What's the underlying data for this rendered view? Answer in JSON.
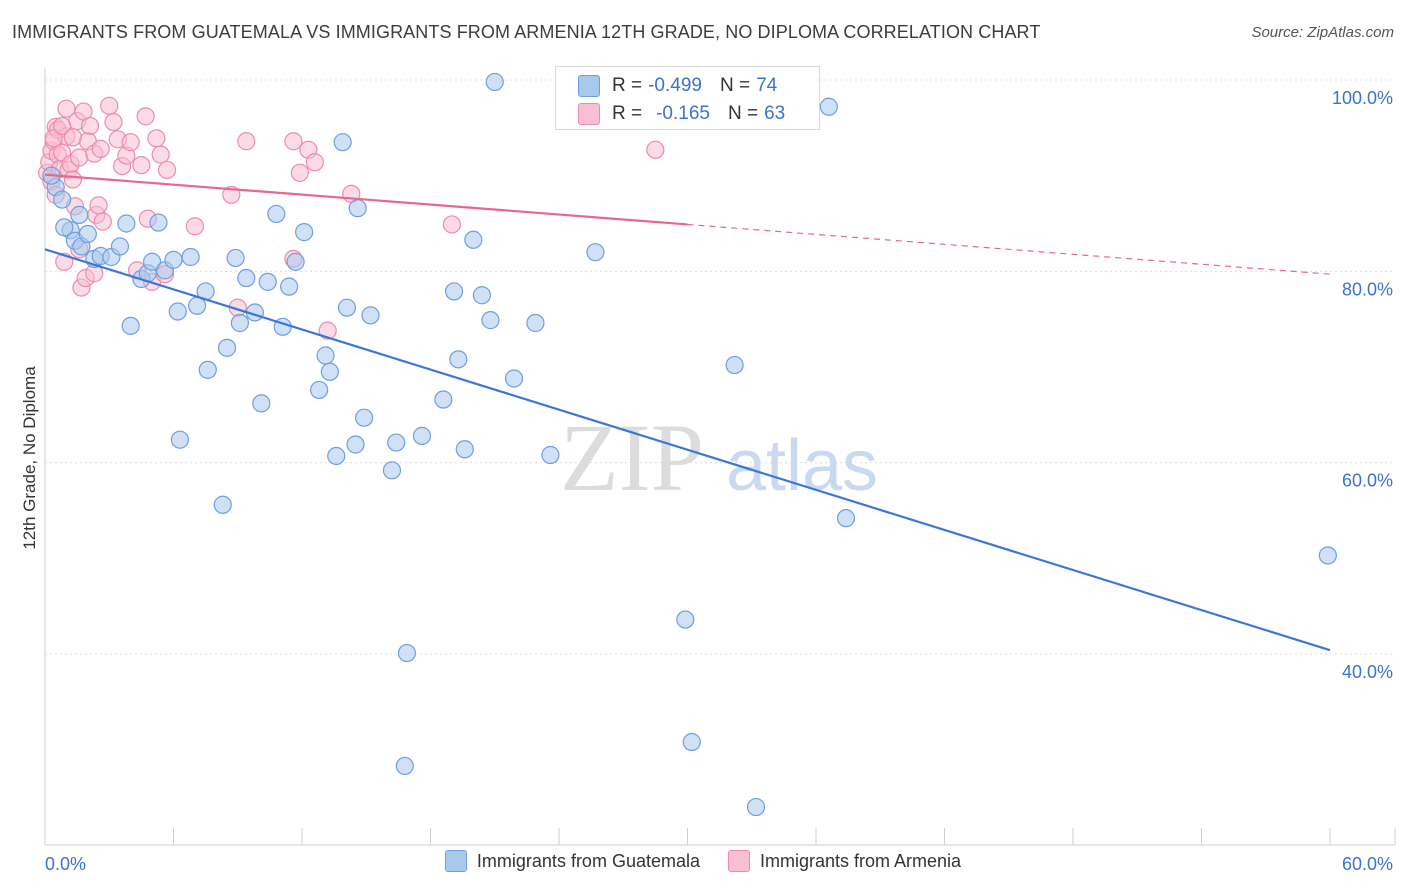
{
  "title": "IMMIGRANTS FROM GUATEMALA VS IMMIGRANTS FROM ARMENIA 12TH GRADE, NO DIPLOMA CORRELATION CHART",
  "source": "Source: ZipAtlas.com",
  "watermark": {
    "zip": "ZIP",
    "atlas": "atlas"
  },
  "stats": [
    {
      "r_label": "R =",
      "r_value": "-0.499",
      "n_label": "N =",
      "n_value": "74",
      "color": "#aac8ee",
      "border": "#6f9ee0"
    },
    {
      "r_label": "R =",
      "r_value": "-0.165",
      "n_label": "N =",
      "n_value": "63",
      "color": "#f8c0d2",
      "border": "#ef8bab"
    }
  ],
  "legend": [
    {
      "label": "Immigrants from Guatemala",
      "color": "#aac8ee",
      "border": "#6f9ee0"
    },
    {
      "label": "Immigrants from Armenia",
      "color": "#f8c0d2",
      "border": "#ef8bab"
    }
  ],
  "chart_data": {
    "type": "scatter",
    "ylabel": "12th Grade, No Diploma",
    "xlim": [
      0,
      60
    ],
    "ylim": [
      20,
      102
    ],
    "x_tick_labels": [
      {
        "value": 0,
        "label": "0.0%"
      },
      {
        "value": 60,
        "label": "60.0%"
      }
    ],
    "y_tick_labels": [
      {
        "value": 100,
        "label": "100.0%"
      },
      {
        "value": 80,
        "label": "80.0%"
      },
      {
        "value": 60,
        "label": "60.0%"
      },
      {
        "value": 40,
        "label": "40.0%"
      }
    ],
    "grid": true,
    "series": [
      {
        "name": "Immigrants from Guatemala",
        "color": "#aac8ee",
        "stroke": "#6f9ee0",
        "trend_color": "#3a78d6",
        "trend": {
          "x": [
            0,
            60
          ],
          "y": [
            82.3,
            40.4
          ]
        },
        "points": [
          {
            "x": 0.5,
            "y": 88.8
          },
          {
            "x": 0.8,
            "y": 87.5
          },
          {
            "x": 1.2,
            "y": 84.3
          },
          {
            "x": 1.4,
            "y": 83.2
          },
          {
            "x": 1.7,
            "y": 82.6
          },
          {
            "x": 2.0,
            "y": 83.9
          },
          {
            "x": 2.3,
            "y": 81.3
          },
          {
            "x": 2.6,
            "y": 81.6
          },
          {
            "x": 3.1,
            "y": 81.5
          },
          {
            "x": 3.5,
            "y": 82.6
          },
          {
            "x": 3.8,
            "y": 85.0
          },
          {
            "x": 4.0,
            "y": 74.3
          },
          {
            "x": 4.5,
            "y": 79.2
          },
          {
            "x": 4.8,
            "y": 79.8
          },
          {
            "x": 5.0,
            "y": 81.0
          },
          {
            "x": 5.3,
            "y": 85.1
          },
          {
            "x": 5.6,
            "y": 80.1
          },
          {
            "x": 6.0,
            "y": 81.2
          },
          {
            "x": 6.2,
            "y": 75.8
          },
          {
            "x": 6.3,
            "y": 62.4
          },
          {
            "x": 6.8,
            "y": 81.5
          },
          {
            "x": 7.1,
            "y": 76.4
          },
          {
            "x": 7.5,
            "y": 77.9
          },
          {
            "x": 7.6,
            "y": 69.7
          },
          {
            "x": 8.3,
            "y": 55.6
          },
          {
            "x": 8.5,
            "y": 72.0
          },
          {
            "x": 8.9,
            "y": 81.4
          },
          {
            "x": 9.1,
            "y": 74.6
          },
          {
            "x": 9.4,
            "y": 79.3
          },
          {
            "x": 9.8,
            "y": 75.7
          },
          {
            "x": 10.1,
            "y": 66.2
          },
          {
            "x": 10.4,
            "y": 78.9
          },
          {
            "x": 10.8,
            "y": 86.0
          },
          {
            "x": 11.1,
            "y": 74.2
          },
          {
            "x": 11.4,
            "y": 78.4
          },
          {
            "x": 11.7,
            "y": 81.0
          },
          {
            "x": 12.1,
            "y": 84.1
          },
          {
            "x": 12.8,
            "y": 67.6
          },
          {
            "x": 13.1,
            "y": 71.2
          },
          {
            "x": 13.3,
            "y": 69.5
          },
          {
            "x": 13.6,
            "y": 60.7
          },
          {
            "x": 13.9,
            "y": 93.5
          },
          {
            "x": 14.1,
            "y": 76.2
          },
          {
            "x": 14.5,
            "y": 61.9
          },
          {
            "x": 14.6,
            "y": 86.6
          },
          {
            "x": 14.9,
            "y": 64.7
          },
          {
            "x": 15.2,
            "y": 75.4
          },
          {
            "x": 16.2,
            "y": 59.2
          },
          {
            "x": 16.4,
            "y": 62.1
          },
          {
            "x": 16.8,
            "y": 28.3
          },
          {
            "x": 16.9,
            "y": 40.1
          },
          {
            "x": 17.6,
            "y": 62.8
          },
          {
            "x": 18.6,
            "y": 66.6
          },
          {
            "x": 19.1,
            "y": 77.9
          },
          {
            "x": 19.3,
            "y": 70.8
          },
          {
            "x": 19.6,
            "y": 61.4
          },
          {
            "x": 20.0,
            "y": 83.3
          },
          {
            "x": 20.4,
            "y": 77.5
          },
          {
            "x": 20.8,
            "y": 74.9
          },
          {
            "x": 21.0,
            "y": 99.8
          },
          {
            "x": 21.9,
            "y": 68.8
          },
          {
            "x": 22.9,
            "y": 74.6
          },
          {
            "x": 23.6,
            "y": 60.8
          },
          {
            "x": 25.7,
            "y": 82.0
          },
          {
            "x": 29.9,
            "y": 43.6
          },
          {
            "x": 30.2,
            "y": 30.8
          },
          {
            "x": 32.2,
            "y": 70.2
          },
          {
            "x": 33.2,
            "y": 24.0
          },
          {
            "x": 36.6,
            "y": 97.2
          },
          {
            "x": 37.4,
            "y": 54.2
          },
          {
            "x": 59.9,
            "y": 50.3
          },
          {
            "x": 0.3,
            "y": 90.0
          },
          {
            "x": 0.9,
            "y": 84.6
          },
          {
            "x": 1.6,
            "y": 85.9
          }
        ]
      },
      {
        "name": "Immigrants from Armenia",
        "color": "#f8c0d2",
        "stroke": "#ef8bab",
        "trend_color": "#e8668f",
        "trend": {
          "x": [
            0,
            30
          ],
          "y": [
            90.1,
            84.9
          ]
        },
        "trend_dashed": {
          "x": [
            30,
            60
          ],
          "y": [
            84.9,
            79.7
          ]
        },
        "points": [
          {
            "x": 0.1,
            "y": 90.3
          },
          {
            "x": 0.2,
            "y": 91.4
          },
          {
            "x": 0.3,
            "y": 89.4
          },
          {
            "x": 0.3,
            "y": 92.6
          },
          {
            "x": 0.4,
            "y": 93.6
          },
          {
            "x": 0.5,
            "y": 95.1
          },
          {
            "x": 0.5,
            "y": 88.0
          },
          {
            "x": 0.6,
            "y": 92.2
          },
          {
            "x": 0.6,
            "y": 94.8
          },
          {
            "x": 0.7,
            "y": 90.7
          },
          {
            "x": 0.8,
            "y": 92.4
          },
          {
            "x": 0.9,
            "y": 81.0
          },
          {
            "x": 1.0,
            "y": 97.0
          },
          {
            "x": 1.0,
            "y": 94.1
          },
          {
            "x": 1.1,
            "y": 90.6
          },
          {
            "x": 1.2,
            "y": 91.2
          },
          {
            "x": 1.3,
            "y": 89.6
          },
          {
            "x": 1.4,
            "y": 86.8
          },
          {
            "x": 1.5,
            "y": 95.7
          },
          {
            "x": 1.6,
            "y": 91.9
          },
          {
            "x": 1.6,
            "y": 82.3
          },
          {
            "x": 1.7,
            "y": 78.3
          },
          {
            "x": 1.8,
            "y": 96.7
          },
          {
            "x": 1.9,
            "y": 79.3
          },
          {
            "x": 2.0,
            "y": 93.6
          },
          {
            "x": 2.1,
            "y": 95.2
          },
          {
            "x": 2.3,
            "y": 92.3
          },
          {
            "x": 2.3,
            "y": 79.8
          },
          {
            "x": 2.4,
            "y": 85.9
          },
          {
            "x": 2.5,
            "y": 86.9
          },
          {
            "x": 2.7,
            "y": 85.2
          },
          {
            "x": 3.0,
            "y": 97.3
          },
          {
            "x": 3.2,
            "y": 95.6
          },
          {
            "x": 3.4,
            "y": 93.8
          },
          {
            "x": 3.6,
            "y": 91.0
          },
          {
            "x": 3.8,
            "y": 92.1
          },
          {
            "x": 4.0,
            "y": 93.5
          },
          {
            "x": 4.3,
            "y": 80.1
          },
          {
            "x": 4.5,
            "y": 91.1
          },
          {
            "x": 4.7,
            "y": 96.2
          },
          {
            "x": 4.8,
            "y": 85.5
          },
          {
            "x": 5.0,
            "y": 78.9
          },
          {
            "x": 5.2,
            "y": 93.9
          },
          {
            "x": 5.4,
            "y": 92.2
          },
          {
            "x": 5.6,
            "y": 79.7
          },
          {
            "x": 5.7,
            "y": 90.6
          },
          {
            "x": 7.0,
            "y": 84.7
          },
          {
            "x": 8.7,
            "y": 88.0
          },
          {
            "x": 9.0,
            "y": 76.2
          },
          {
            "x": 9.4,
            "y": 93.6
          },
          {
            "x": 11.6,
            "y": 93.6
          },
          {
            "x": 11.6,
            "y": 81.3
          },
          {
            "x": 11.9,
            "y": 90.3
          },
          {
            "x": 12.3,
            "y": 92.7
          },
          {
            "x": 12.6,
            "y": 91.4
          },
          {
            "x": 13.2,
            "y": 73.8
          },
          {
            "x": 14.3,
            "y": 88.1
          },
          {
            "x": 19.0,
            "y": 84.9
          },
          {
            "x": 28.5,
            "y": 92.7
          },
          {
            "x": 0.4,
            "y": 93.9
          },
          {
            "x": 0.8,
            "y": 95.2
          },
          {
            "x": 1.3,
            "y": 94.0
          },
          {
            "x": 2.6,
            "y": 92.8
          }
        ]
      }
    ]
  }
}
